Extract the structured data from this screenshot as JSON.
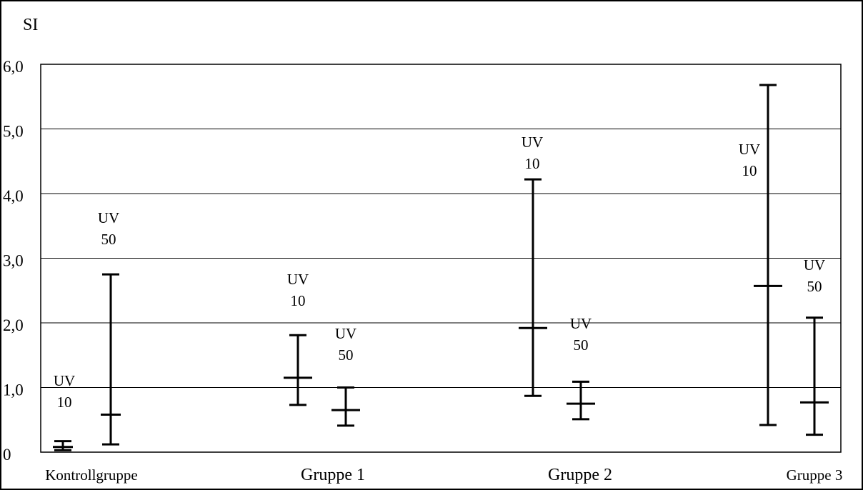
{
  "chart_data": {
    "type": "errorbar",
    "ylabel": "SI",
    "ylim": [
      0,
      6
    ],
    "grid": "horizontal",
    "y_ticks": [
      {
        "value": 0,
        "label": "0"
      },
      {
        "value": 1,
        "label": "1,0"
      },
      {
        "value": 2,
        "label": "2,0"
      },
      {
        "value": 3,
        "label": "3,0"
      },
      {
        "value": 4,
        "label": "4,0"
      },
      {
        "value": 5,
        "label": "5,0"
      },
      {
        "value": 6,
        "label": "6,0"
      }
    ],
    "categories": [
      "Kontrollgruppe",
      "Gruppe 1",
      "Gruppe 2",
      "Gruppe 3"
    ],
    "series": [
      {
        "name": "UV 10",
        "label_lines": [
          "UV",
          "10"
        ],
        "mean": [
          0.08,
          1.15,
          1.92,
          2.57
        ],
        "lower": [
          0.03,
          0.73,
          0.87,
          0.42
        ],
        "upper": [
          0.17,
          1.81,
          4.22,
          5.68
        ]
      },
      {
        "name": "UV 50",
        "label_lines": [
          "UV",
          "50"
        ],
        "mean": [
          0.58,
          0.65,
          0.75,
          0.77
        ],
        "lower": [
          0.12,
          0.41,
          0.51,
          0.27
        ],
        "upper": [
          2.75,
          1.0,
          1.09,
          2.08
        ]
      }
    ]
  }
}
